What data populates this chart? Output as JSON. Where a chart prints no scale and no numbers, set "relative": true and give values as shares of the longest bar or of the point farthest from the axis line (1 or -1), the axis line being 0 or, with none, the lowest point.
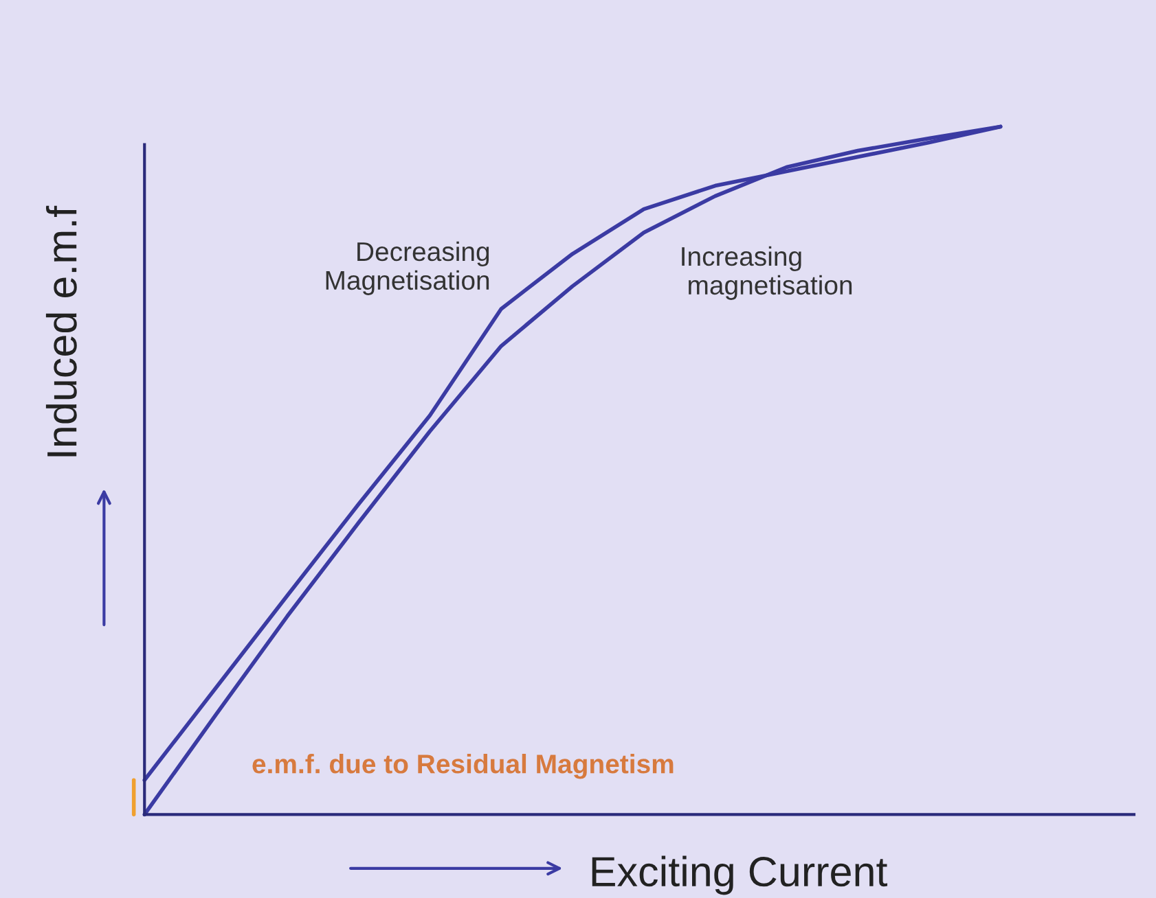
{
  "chart_data": {
    "type": "line",
    "relative": true,
    "xlabel": "Exciting Current",
    "ylabel": "Induced e.m.f",
    "categories": [
      null,
      null,
      null,
      null,
      null,
      null,
      null,
      null,
      null,
      null,
      null,
      null,
      null
    ],
    "series": [
      {
        "name": "Increasing\n magnetisation",
        "color": "#3b3ba3",
        "values": [
          0.0,
          0.145,
          0.288,
          0.424,
          0.557,
          0.681,
          0.768,
          0.846,
          0.899,
          0.941,
          0.965,
          0.983,
          1.0
        ]
      },
      {
        "name": "Decreasing\nMagnetisation",
        "color": "#3b3ba3",
        "values": [
          0.05,
          0.184,
          0.318,
          0.451,
          0.58,
          0.735,
          0.815,
          0.88,
          0.914,
          0.935,
          0.956,
          0.977,
          1.0
        ]
      }
    ],
    "annotations": [
      "e.m.f. due to Residual Magnetism"
    ],
    "legend": false,
    "marker": "none",
    "line_style": "solid"
  }
}
